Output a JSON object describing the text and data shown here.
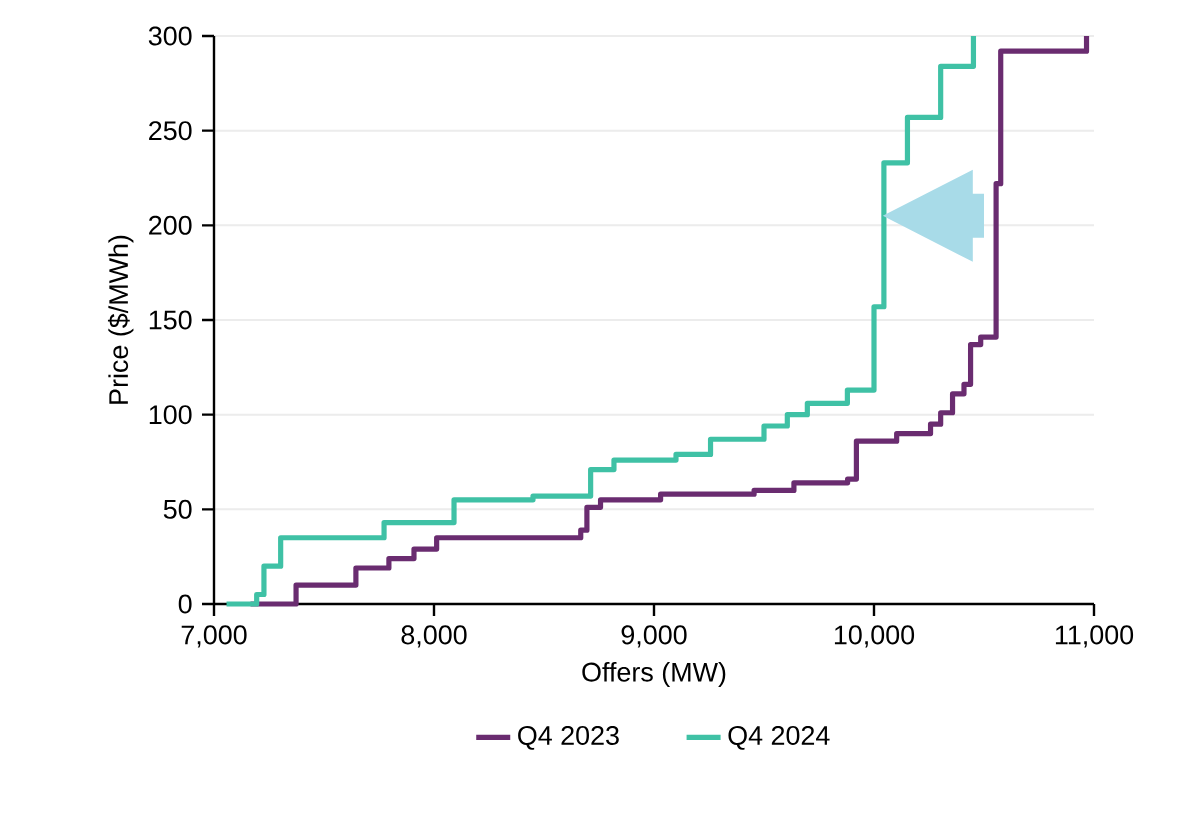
{
  "chart_data": {
    "type": "step",
    "xlabel": "Offers (MW)",
    "ylabel": "Price ($/MWh)",
    "xlim": [
      7000,
      11000
    ],
    "ylim": [
      0,
      300
    ],
    "xticks": [
      {
        "value": 7000,
        "label": "7,000"
      },
      {
        "value": 8000,
        "label": "8,000"
      },
      {
        "value": 9000,
        "label": "9,000"
      },
      {
        "value": 10000,
        "label": "10,000"
      },
      {
        "value": 11000,
        "label": "11,000"
      }
    ],
    "yticks": [
      0,
      50,
      100,
      150,
      200,
      250,
      300
    ],
    "grid": "y",
    "legend": "bottom",
    "line_style": "solid",
    "marker": "none",
    "series": [
      {
        "name": "Q4 2023",
        "color": "#6a2c70",
        "x": [
          7166,
          7373,
          7645,
          7795,
          7909,
          8012,
          8667,
          8695,
          8757,
          9030,
          9455,
          9636,
          9880,
          9920,
          10103,
          10257,
          10303,
          10357,
          10409,
          10439,
          10485,
          10555,
          10576,
          10966
        ],
        "values": [
          0,
          10,
          19,
          24,
          29,
          35,
          39,
          51,
          55,
          58,
          60,
          64,
          66,
          86,
          90,
          95,
          101,
          111,
          116,
          137,
          141,
          222,
          292,
          300
        ]
      },
      {
        "name": "Q4 2024",
        "color": "#3fc1a5",
        "x": [
          7057,
          7194,
          7227,
          7303,
          7773,
          8091,
          8450,
          8712,
          8818,
          9100,
          9257,
          9500,
          9606,
          9697,
          9879,
          10000,
          10045,
          10152,
          10303,
          10452
        ],
        "values": [
          0,
          5,
          20,
          35,
          43,
          55,
          57,
          71,
          76,
          79,
          87,
          94,
          100,
          106,
          113,
          157,
          233,
          257,
          284,
          300
        ]
      }
    ]
  }
}
